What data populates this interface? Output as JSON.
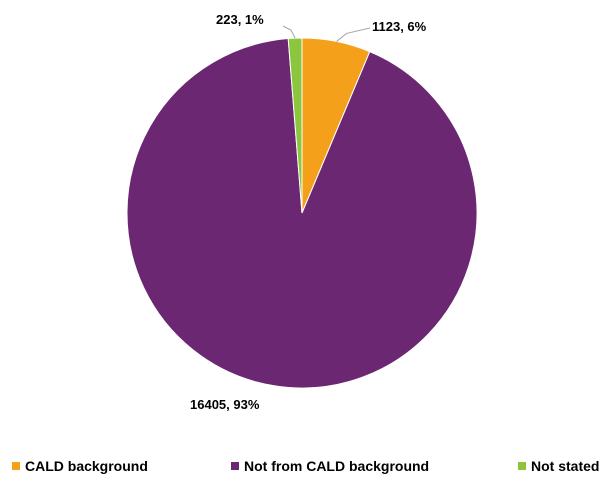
{
  "chart_data": {
    "type": "pie",
    "categories": [
      "CALD background",
      "Not from CALD background",
      "Not stated"
    ],
    "values": [
      1123,
      16405,
      223
    ],
    "percents": [
      6,
      93,
      1
    ],
    "data_labels": [
      "1123, 6%",
      "16405, 93%",
      "223, 1%"
    ],
    "colors": [
      "#F5A01A",
      "#6B2772",
      "#8CC63F"
    ],
    "legend_position": "bottom"
  }
}
